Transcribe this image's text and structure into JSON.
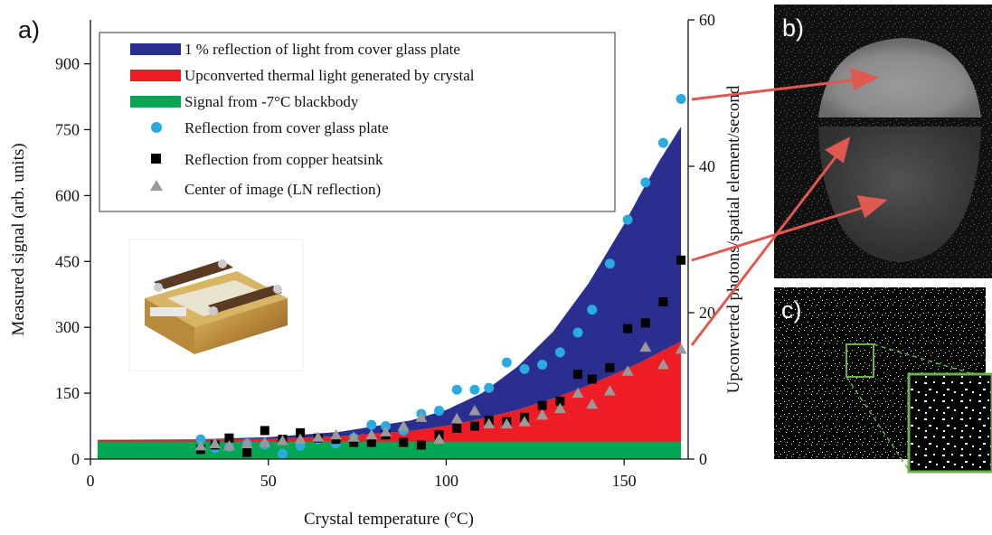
{
  "panel_labels": {
    "a": "a)",
    "b": "b)",
    "c": "c)"
  },
  "colors": {
    "blue_band": "#2a2f8f",
    "red_band": "#ee1c25",
    "green_band": "#00a651",
    "cyan_points": "#29abe2",
    "black_points": "#000000",
    "gray_points": "#999999",
    "arrow": "#e0584f",
    "inset_frame": "#6ab04c"
  },
  "chart_data": {
    "type": "scatter",
    "xlabel": "Crystal temperature (°C)",
    "ylabel": "Measured signal (arb. units)",
    "y2label": "Upconverted photons/spatial element/second",
    "xlim": [
      0,
      168
    ],
    "ylim": [
      0,
      1000
    ],
    "y2lim": [
      0,
      60
    ],
    "xticks": [
      0,
      50,
      100,
      150
    ],
    "yticks": [
      0,
      150,
      300,
      450,
      600,
      750,
      900
    ],
    "y2ticks": [
      0,
      20,
      40,
      60
    ],
    "legend_position": "top-left",
    "bands": [
      {
        "name": "1 % reflection of light from cover glass plate",
        "color": "#2a2f8f",
        "x": [
          2,
          30,
          50,
          70,
          90,
          100,
          110,
          120,
          130,
          140,
          150,
          155,
          160,
          166
        ],
        "lower": [
          44,
          44,
          46,
          52,
          64,
          76,
          92,
          112,
          138,
          168,
          203,
          222,
          243,
          268
        ],
        "upper": [
          44,
          45,
          50,
          62,
          88,
          112,
          150,
          210,
          290,
          400,
          535,
          610,
          680,
          757
        ]
      },
      {
        "name": "Upconverted thermal light generated by crystal",
        "color": "#ee1c25",
        "x": [
          2,
          30,
          50,
          70,
          90,
          100,
          110,
          120,
          130,
          140,
          150,
          155,
          160,
          166
        ],
        "lower": [
          40,
          40,
          40,
          40,
          40,
          40,
          40,
          40,
          40,
          40,
          40,
          40,
          40,
          40
        ],
        "upper": [
          44,
          44,
          46,
          52,
          64,
          76,
          92,
          112,
          138,
          168,
          203,
          222,
          243,
          268
        ]
      },
      {
        "name": "Signal from -7°C blackbody",
        "color": "#00a651",
        "x": [
          2,
          166
        ],
        "lower": [
          0,
          0
        ],
        "upper": [
          42,
          42
        ]
      }
    ],
    "series": [
      {
        "name": "Reflection from cover glass plate",
        "marker": "circle",
        "color": "#29abe2",
        "x": [
          31,
          35,
          39,
          44,
          49,
          54,
          59,
          64,
          69,
          74,
          79,
          83,
          88,
          93,
          98,
          103,
          108,
          112,
          117,
          122,
          127,
          132,
          137,
          141,
          146,
          151,
          156,
          161,
          166
        ],
        "y": [
          45,
          25,
          28,
          35,
          33,
          12,
          30,
          45,
          35,
          48,
          78,
          75,
          65,
          103,
          110,
          158,
          158,
          162,
          220,
          205,
          215,
          243,
          288,
          340,
          445,
          545,
          630,
          720,
          820
        ]
      },
      {
        "name": "Reflection from copper heatsink",
        "marker": "square",
        "color": "#000000",
        "x": [
          31,
          35,
          39,
          44,
          49,
          54,
          59,
          64,
          69,
          74,
          79,
          83,
          88,
          93,
          98,
          103,
          108,
          112,
          117,
          122,
          127,
          132,
          137,
          141,
          146,
          151,
          156,
          161,
          166
        ],
        "y": [
          22,
          32,
          48,
          15,
          65,
          45,
          60,
          48,
          45,
          38,
          38,
          55,
          38,
          32,
          55,
          70,
          75,
          88,
          85,
          95,
          122,
          132,
          193,
          182,
          208,
          297,
          310,
          358,
          453
        ]
      },
      {
        "name": "Center of image (LN reflection)",
        "marker": "triangle",
        "color": "#999999",
        "x": [
          31,
          35,
          39,
          44,
          49,
          54,
          59,
          64,
          69,
          74,
          79,
          83,
          88,
          93,
          98,
          103,
          108,
          112,
          117,
          122,
          127,
          132,
          137,
          141,
          146,
          151,
          156,
          161,
          166
        ],
        "y": [
          30,
          35,
          30,
          35,
          38,
          42,
          45,
          50,
          55,
          50,
          55,
          62,
          75,
          95,
          45,
          92,
          110,
          80,
          80,
          85,
          100,
          115,
          150,
          125,
          155,
          200,
          255,
          215,
          250
        ]
      }
    ]
  }
}
